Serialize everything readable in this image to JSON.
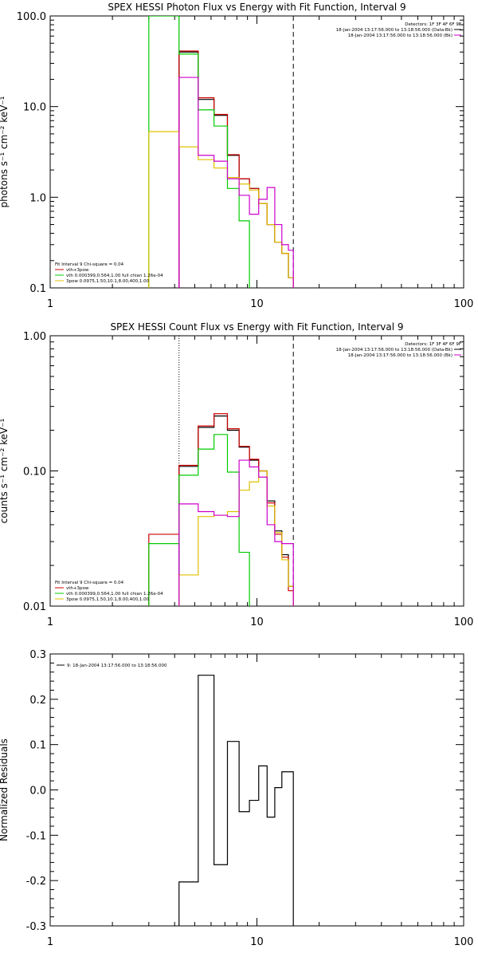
{
  "chart_data": [
    {
      "type": "line",
      "title": "SPEX HESSI Photon Flux vs Energy with Fit Function, Interval 9",
      "ylabel": "photons s⁻¹ cm⁻² keV⁻¹",
      "xscale": "log",
      "yscale": "log",
      "xlim": [
        1,
        100
      ],
      "ylim": [
        0.1,
        100
      ],
      "xticklabels": [
        "1",
        "10",
        "100"
      ],
      "yticks": [
        0.1,
        1,
        10,
        100
      ],
      "yticklabels": [
        "0.1",
        "1.0",
        "10.0",
        "100.0"
      ],
      "legend_top_right": [
        "Detectors: 1F 3F 4F 6F 9F",
        "18-Jan-2004 13:17:56.000 to 13:18:56.000 (Data-Bk)",
        "18-Jan-2004 13:17:56.000 to 13:18:56.000 (Bk)"
      ],
      "legend_bottom_left": [
        "Fit Interval  9    Chi-square = 0.04",
        "vth+3pow",
        "vth 0.000399,0.564,1.00  full chian 1.26e-04",
        "3pow 0.0975,1.50,10.1,8.00,400,1.00"
      ],
      "vlines": [
        {
          "x": 4.2,
          "style": "dotted"
        },
        {
          "x": 15.0,
          "style": "dashed"
        }
      ],
      "series": [
        {
          "color": "#000000",
          "edges": [
            4.2,
            5.2,
            6.2,
            7.2,
            8.2,
            9.2,
            10.2,
            11.2,
            12.2,
            13.2,
            14.2,
            15.0
          ],
          "values": [
            40,
            12,
            8,
            2.9,
            1.6,
            1.25,
            0.85,
            0.5,
            0.32,
            0.24,
            0.13
          ]
        },
        {
          "color": "#cc0000",
          "edges": [
            4.2,
            5.2,
            6.2,
            7.2,
            8.2,
            9.2,
            10.2,
            11.2,
            12.2,
            13.2,
            14.2,
            15.0
          ],
          "values": [
            41,
            12.5,
            8.2,
            2.95,
            1.6,
            1.25,
            0.85,
            0.5,
            0.32,
            0.24,
            0.13
          ]
        },
        {
          "color": "#00cc00",
          "edges": [
            3.0,
            4.2,
            5.2,
            6.2,
            7.2,
            8.2,
            9.2
          ],
          "values": [
            100,
            38,
            9.2,
            6.1,
            1.25,
            0.55,
            0.1
          ]
        },
        {
          "color": "#e0c000",
          "edges": [
            3.0,
            4.2,
            5.2,
            6.2,
            7.2,
            8.2,
            9.2,
            10.2,
            11.2,
            12.2,
            13.2,
            14.2,
            15.0
          ],
          "values": [
            5.3,
            3.6,
            2.6,
            2.1,
            1.65,
            1.4,
            1.2,
            0.85,
            0.5,
            0.32,
            0.24,
            0.13
          ]
        },
        {
          "color": "#cc00cc",
          "edges": [
            4.2,
            5.2,
            6.2,
            7.2,
            8.2,
            9.2,
            10.2,
            11.2,
            12.2,
            13.2,
            14.2,
            15.0
          ],
          "values": [
            21,
            2.9,
            2.5,
            1.6,
            1.05,
            0.65,
            0.95,
            1.28,
            0.5,
            0.3,
            0.26
          ]
        }
      ]
    },
    {
      "type": "line",
      "title": "SPEX HESSI Count Flux vs Energy with Fit Function, Interval 9",
      "ylabel": "counts s⁻¹ cm⁻² keV⁻¹",
      "xscale": "log",
      "yscale": "log",
      "xlim": [
        1,
        100
      ],
      "ylim": [
        0.01,
        1
      ],
      "xticklabels": [
        "1",
        "10",
        "100"
      ],
      "yticks": [
        0.01,
        0.1,
        1
      ],
      "yticklabels": [
        "0.01",
        "0.10",
        "1.00"
      ],
      "legend_top_right": [
        "Detectors: 1F 3F 4F 6F 9F",
        "18-Jan-2004 13:17:56.000 to 13:18:56.000 (Data-Bk)",
        "18-Jan-2004 13:17:56.000 to 13:18:56.000 (Bk)"
      ],
      "legend_bottom_left": [
        "Fit Interval  9    Chi-square = 0.04",
        "vth+3pow",
        "vth 0.000399,0.564,1.00  full chian 1.26e-04",
        "3pow 0.0975,1.50,10.1,8.00,400,1.00"
      ],
      "vlines": [
        {
          "x": 4.2,
          "style": "dotted"
        },
        {
          "x": 15.0,
          "style": "dashed"
        }
      ],
      "series": [
        {
          "color": "#000000",
          "edges": [
            4.2,
            5.2,
            6.2,
            7.2,
            8.2,
            9.2,
            10.2,
            11.2,
            12.2,
            13.2,
            14.2,
            15.0
          ],
          "values": [
            0.108,
            0.21,
            0.255,
            0.2,
            0.15,
            0.12,
            0.1,
            0.06,
            0.036,
            0.024,
            0.014
          ]
        },
        {
          "color": "#cc0000",
          "edges": [
            3.0,
            4.2,
            5.2,
            6.2,
            7.2,
            8.2,
            9.2,
            10.2,
            11.2,
            12.2,
            13.2,
            14.2,
            15.0
          ],
          "values": [
            0.034,
            0.11,
            0.215,
            0.265,
            0.205,
            0.152,
            0.122,
            0.1,
            0.058,
            0.034,
            0.023,
            0.013
          ]
        },
        {
          "color": "#00cc00",
          "edges": [
            3.0,
            4.2,
            5.2,
            6.2,
            7.2,
            8.2,
            9.2
          ],
          "values": [
            0.029,
            0.093,
            0.145,
            0.186,
            0.098,
            0.025,
            0.01
          ]
        },
        {
          "color": "#e0c000",
          "edges": [
            4.2,
            5.2,
            6.2,
            7.2,
            8.2,
            9.2,
            10.2,
            11.2,
            12.2,
            13.2,
            14.2,
            15.0
          ],
          "values": [
            0.017,
            0.046,
            0.047,
            0.05,
            0.072,
            0.083,
            0.1,
            0.055,
            0.035,
            0.022,
            0.014
          ]
        },
        {
          "color": "#cc00cc",
          "edges": [
            4.2,
            5.2,
            6.2,
            7.2,
            8.2,
            9.2,
            10.2,
            11.2,
            12.2,
            13.2,
            14.2,
            15.0
          ],
          "values": [
            0.057,
            0.05,
            0.047,
            0.046,
            0.12,
            0.107,
            0.09,
            0.04,
            0.03,
            0.029,
            0.029
          ]
        }
      ]
    },
    {
      "type": "line",
      "title": "",
      "ylabel": "Normalized Residuals",
      "xscale": "log",
      "yscale": "linear",
      "xlim": [
        1,
        100
      ],
      "ylim": [
        -0.3,
        0.3
      ],
      "xticklabels": [
        "1",
        "10",
        "100"
      ],
      "yticks": [
        -0.3,
        -0.2,
        -0.1,
        0.0,
        0.1,
        0.2,
        0.3
      ],
      "yticklabels": [
        "-0.3",
        "-0.2",
        "-0.1",
        "0.0",
        "0.1",
        "0.2",
        "0.3"
      ],
      "legend_top_left": "9: 18-Jan-2004 13:17:56.000 to 13:18:56.000",
      "series": [
        {
          "color": "#000000",
          "edges": [
            4.2,
            5.2,
            6.2,
            7.2,
            8.2,
            9.2,
            10.2,
            11.2,
            12.2,
            13.2,
            14.2,
            15.0
          ],
          "values": [
            -0.203,
            0.253,
            -0.165,
            0.107,
            -0.048,
            -0.023,
            0.053,
            -0.06,
            0.005,
            0.04,
            0.04
          ],
          "start_from_bottom": true
        }
      ]
    }
  ]
}
